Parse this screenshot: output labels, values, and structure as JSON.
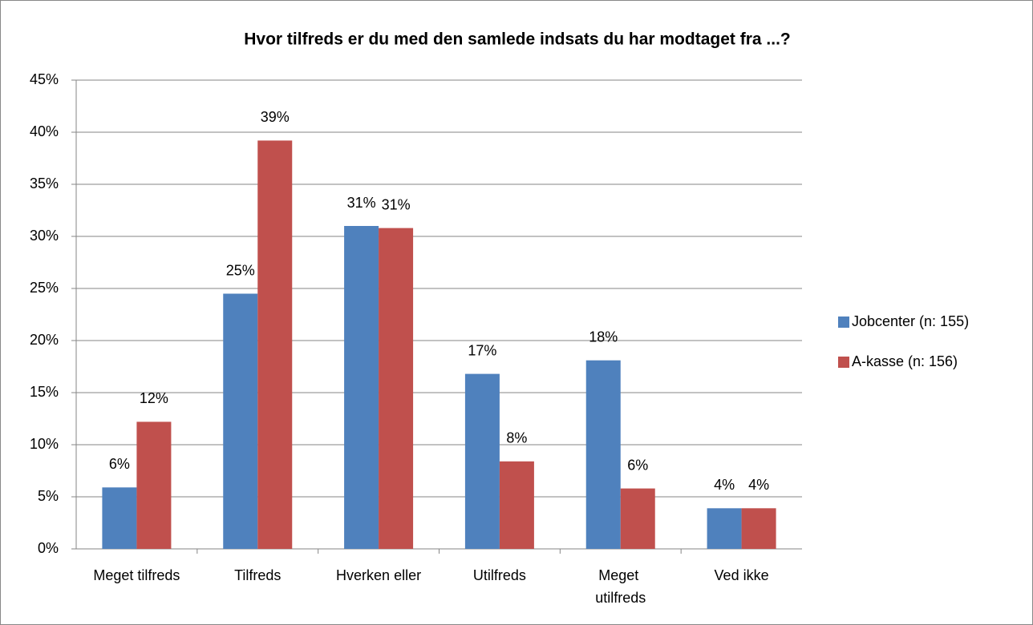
{
  "chart_data": {
    "type": "bar",
    "title": "Hvor tilfreds er du med den samlede indsats du har modtaget fra ...?",
    "categories": [
      "Meget tilfreds",
      "Tilfreds",
      "Hverken eller",
      "Utilfreds",
      "Meget utilfreds",
      "Ved ikke"
    ],
    "series": [
      {
        "name": "Jobcenter (n: 155)",
        "color": "#4f81bd",
        "values": [
          5.9,
          24.5,
          31.0,
          16.8,
          18.1,
          3.9
        ],
        "value_labels": [
          "6%",
          "25%",
          "31%",
          "17%",
          "18%",
          "4%"
        ]
      },
      {
        "name": "A-kasse (n: 156)",
        "color": "#c0504d",
        "values": [
          12.2,
          39.2,
          30.8,
          8.4,
          5.8,
          3.9
        ],
        "value_labels": [
          "12%",
          "39%",
          "31%",
          "8%",
          "6%",
          "4%"
        ]
      }
    ],
    "ylim": [
      0,
      45
    ],
    "yticks": [
      {
        "value": 0,
        "label": "0%"
      },
      {
        "value": 5,
        "label": "5%"
      },
      {
        "value": 10,
        "label": "10%"
      },
      {
        "value": 15,
        "label": "15%"
      },
      {
        "value": 20,
        "label": "20%"
      },
      {
        "value": 25,
        "label": "25%"
      },
      {
        "value": 30,
        "label": "30%"
      },
      {
        "value": 35,
        "label": "35%"
      },
      {
        "value": 40,
        "label": "40%"
      },
      {
        "value": 45,
        "label": "45%"
      }
    ],
    "grid": true,
    "legend": "right"
  }
}
